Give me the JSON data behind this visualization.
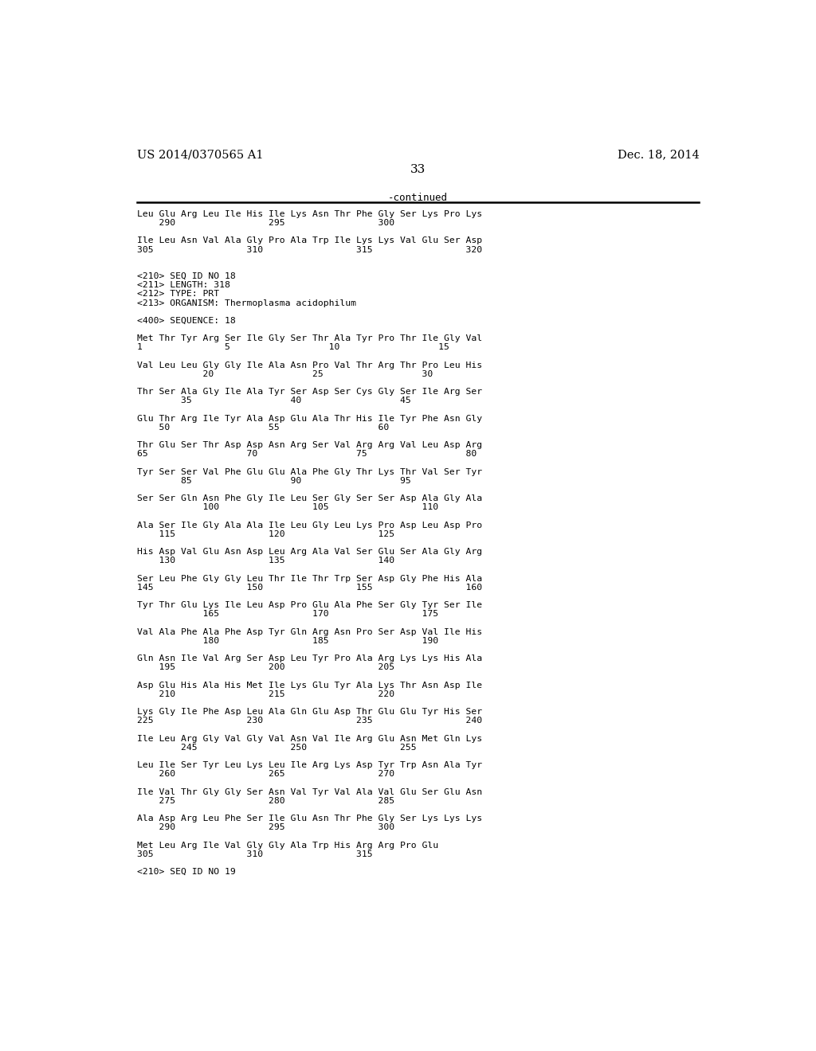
{
  "patent_number": "US 2014/0370565 A1",
  "date": "Dec. 18, 2014",
  "page_number": "33",
  "continued_label": "-continued",
  "background_color": "#ffffff",
  "text_color": "#000000",
  "lines": [
    [
      "seq",
      "Leu Glu Arg Leu Ile His Ile Lys Asn Thr Phe Gly Ser Lys Pro Lys"
    ],
    [
      "num",
      "    290                 295                 300"
    ],
    [
      "blank",
      ""
    ],
    [
      "seq",
      "Ile Leu Asn Val Ala Gly Pro Ala Trp Ile Lys Lys Val Glu Ser Asp"
    ],
    [
      "num",
      "305                 310                 315                 320"
    ],
    [
      "blank",
      ""
    ],
    [
      "blank",
      ""
    ],
    [
      "meta",
      "<210> SEQ ID NO 18"
    ],
    [
      "meta",
      "<211> LENGTH: 318"
    ],
    [
      "meta",
      "<212> TYPE: PRT"
    ],
    [
      "meta",
      "<213> ORGANISM: Thermoplasma acidophilum"
    ],
    [
      "blank",
      ""
    ],
    [
      "meta",
      "<400> SEQUENCE: 18"
    ],
    [
      "blank",
      ""
    ],
    [
      "seq",
      "Met Thr Tyr Arg Ser Ile Gly Ser Thr Ala Tyr Pro Thr Ile Gly Val"
    ],
    [
      "num",
      "1               5                  10                  15"
    ],
    [
      "blank",
      ""
    ],
    [
      "seq",
      "Val Leu Leu Gly Gly Ile Ala Asn Pro Val Thr Arg Thr Pro Leu His"
    ],
    [
      "num",
      "            20                  25                  30"
    ],
    [
      "blank",
      ""
    ],
    [
      "seq",
      "Thr Ser Ala Gly Ile Ala Tyr Ser Asp Ser Cys Gly Ser Ile Arg Ser"
    ],
    [
      "num",
      "        35                  40                  45"
    ],
    [
      "blank",
      ""
    ],
    [
      "seq",
      "Glu Thr Arg Ile Tyr Ala Asp Glu Ala Thr His Ile Tyr Phe Asn Gly"
    ],
    [
      "num",
      "    50                  55                  60"
    ],
    [
      "blank",
      ""
    ],
    [
      "seq",
      "Thr Glu Ser Thr Asp Asp Asn Arg Ser Val Arg Arg Val Leu Asp Arg"
    ],
    [
      "num",
      "65                  70                  75                  80"
    ],
    [
      "blank",
      ""
    ],
    [
      "seq",
      "Tyr Ser Ser Val Phe Glu Glu Ala Phe Gly Thr Lys Thr Val Ser Tyr"
    ],
    [
      "num",
      "        85                  90                  95"
    ],
    [
      "blank",
      ""
    ],
    [
      "seq",
      "Ser Ser Gln Asn Phe Gly Ile Leu Ser Gly Ser Ser Asp Ala Gly Ala"
    ],
    [
      "num",
      "            100                 105                 110"
    ],
    [
      "blank",
      ""
    ],
    [
      "seq",
      "Ala Ser Ile Gly Ala Ala Ile Leu Gly Leu Lys Pro Asp Leu Asp Pro"
    ],
    [
      "num",
      "    115                 120                 125"
    ],
    [
      "blank",
      ""
    ],
    [
      "seq",
      "His Asp Val Glu Asn Asp Leu Arg Ala Val Ser Glu Ser Ala Gly Arg"
    ],
    [
      "num",
      "    130                 135                 140"
    ],
    [
      "blank",
      ""
    ],
    [
      "seq",
      "Ser Leu Phe Gly Gly Leu Thr Ile Thr Trp Ser Asp Gly Phe His Ala"
    ],
    [
      "num",
      "145                 150                 155                 160"
    ],
    [
      "blank",
      ""
    ],
    [
      "seq",
      "Tyr Thr Glu Lys Ile Leu Asp Pro Glu Ala Phe Ser Gly Tyr Ser Ile"
    ],
    [
      "num",
      "            165                 170                 175"
    ],
    [
      "blank",
      ""
    ],
    [
      "seq",
      "Val Ala Phe Ala Phe Asp Tyr Gln Arg Asn Pro Ser Asp Val Ile His"
    ],
    [
      "num",
      "            180                 185                 190"
    ],
    [
      "blank",
      ""
    ],
    [
      "seq",
      "Gln Asn Ile Val Arg Ser Asp Leu Tyr Pro Ala Arg Lys Lys His Ala"
    ],
    [
      "num",
      "    195                 200                 205"
    ],
    [
      "blank",
      ""
    ],
    [
      "seq",
      "Asp Glu His Ala His Met Ile Lys Glu Tyr Ala Lys Thr Asn Asp Ile"
    ],
    [
      "num",
      "    210                 215                 220"
    ],
    [
      "blank",
      ""
    ],
    [
      "seq",
      "Lys Gly Ile Phe Asp Leu Ala Gln Glu Asp Thr Glu Glu Tyr His Ser"
    ],
    [
      "num",
      "225                 230                 235                 240"
    ],
    [
      "blank",
      ""
    ],
    [
      "seq",
      "Ile Leu Arg Gly Val Gly Val Asn Val Ile Arg Glu Asn Met Gln Lys"
    ],
    [
      "num",
      "        245                 250                 255"
    ],
    [
      "blank",
      ""
    ],
    [
      "seq",
      "Leu Ile Ser Tyr Leu Lys Leu Ile Arg Lys Asp Tyr Trp Asn Ala Tyr"
    ],
    [
      "num",
      "    260                 265                 270"
    ],
    [
      "blank",
      ""
    ],
    [
      "seq",
      "Ile Val Thr Gly Gly Ser Asn Val Tyr Val Ala Val Glu Ser Glu Asn"
    ],
    [
      "num",
      "    275                 280                 285"
    ],
    [
      "blank",
      ""
    ],
    [
      "seq",
      "Ala Asp Arg Leu Phe Ser Ile Glu Asn Thr Phe Gly Ser Lys Lys Lys"
    ],
    [
      "num",
      "    290                 295                 300"
    ],
    [
      "blank",
      ""
    ],
    [
      "seq",
      "Met Leu Arg Ile Val Gly Gly Ala Trp His Arg Arg Pro Glu"
    ],
    [
      "num",
      "305                 310                 315"
    ],
    [
      "blank",
      ""
    ],
    [
      "meta",
      "<210> SEQ ID NO 19"
    ]
  ]
}
